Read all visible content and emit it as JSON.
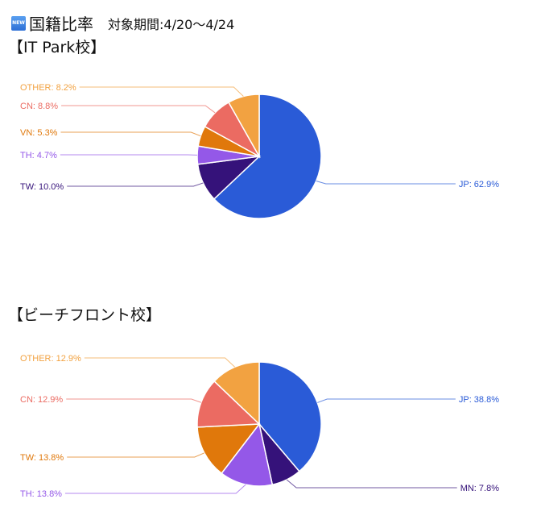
{
  "header": {
    "title": "国籍比率",
    "badge": "NEW",
    "period": "対象期間:4/20〜4/24"
  },
  "chart_data": [
    {
      "type": "pie",
      "title": "【IT Park校】",
      "slices": [
        {
          "label": "JP",
          "value": 62.9,
          "color": "#2a5bd7"
        },
        {
          "label": "TW",
          "value": 10.0,
          "color": "#35127a"
        },
        {
          "label": "TH",
          "value": 4.7,
          "color": "#9458e8"
        },
        {
          "label": "VN",
          "value": 5.3,
          "color": "#e0780b"
        },
        {
          "label": "CN",
          "value": 8.8,
          "color": "#eb6b62"
        },
        {
          "label": "OTHER",
          "value": 8.2,
          "color": "#f2a241"
        }
      ]
    },
    {
      "type": "pie",
      "title": "【ビーチフロント校】",
      "slices": [
        {
          "label": "JP",
          "value": 38.8,
          "color": "#2a5bd7"
        },
        {
          "label": "MN",
          "value": 7.8,
          "color": "#35127a"
        },
        {
          "label": "TH",
          "value": 13.8,
          "color": "#9458e8"
        },
        {
          "label": "TW",
          "value": 13.8,
          "color": "#e0780b"
        },
        {
          "label": "CN",
          "value": 12.9,
          "color": "#eb6b62"
        },
        {
          "label": "OTHER",
          "value": 12.9,
          "color": "#f2a241"
        }
      ]
    }
  ]
}
